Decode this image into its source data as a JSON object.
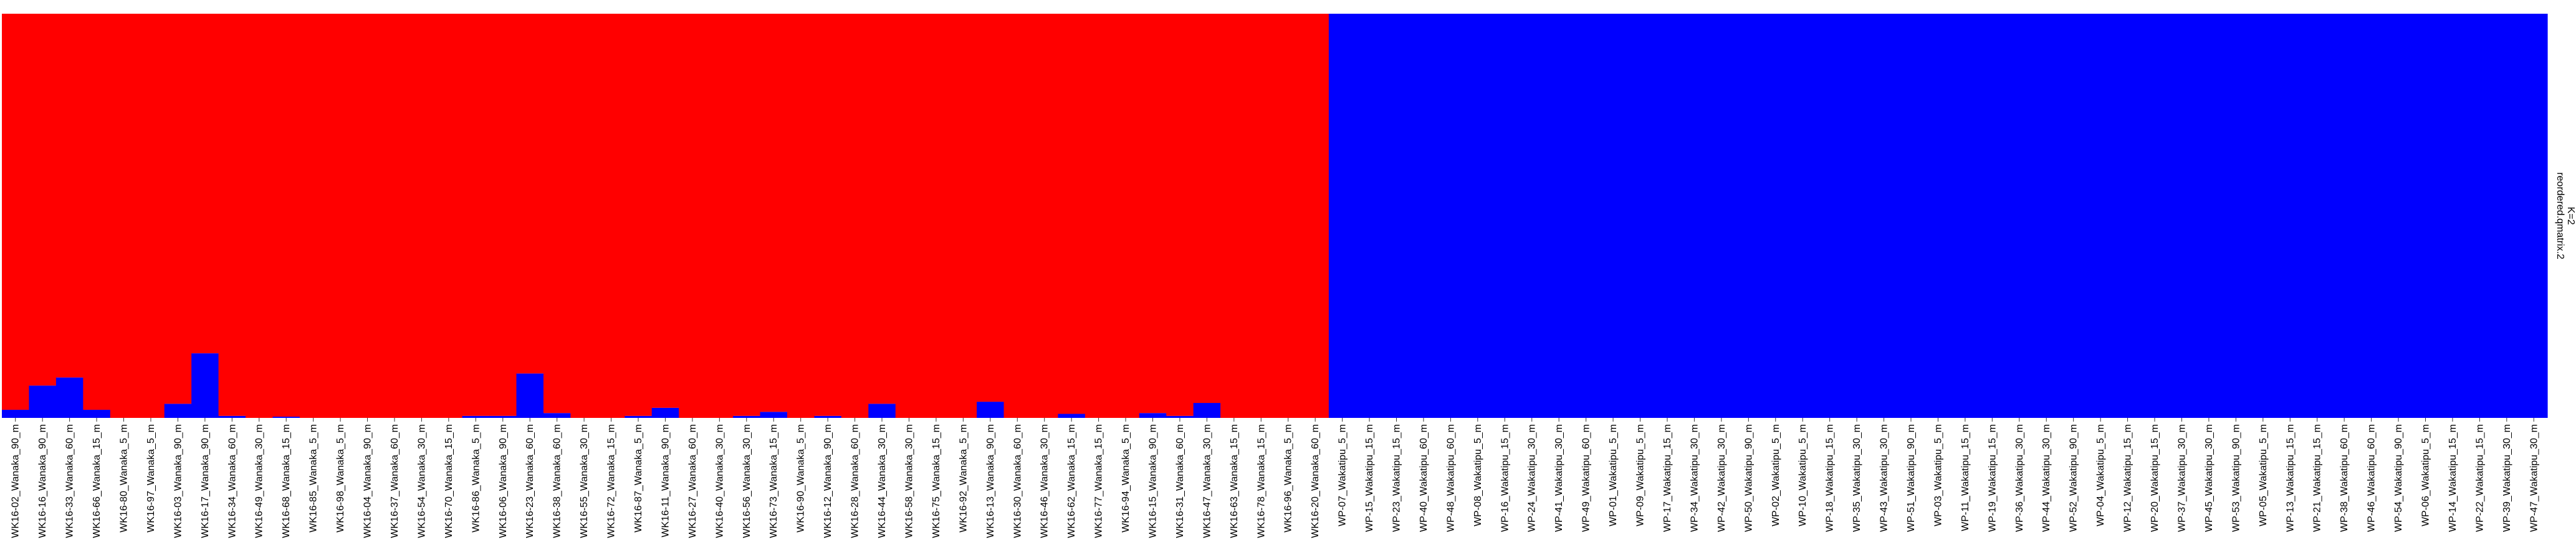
{
  "chart_data": {
    "type": "bar",
    "stacked": true,
    "normalized": true,
    "ylim": [
      0,
      1
    ],
    "grid": false,
    "facet_labels": [
      "reordered.qmatrix.2",
      "K=2"
    ],
    "colors": {
      "cluster1": "#ff0000",
      "cluster2": "#0000ff"
    },
    "categories": [
      "WK16-02_Wanaka_90_m",
      "WK16-16_Wanaka_90_m",
      "WK16-33_Wanaka_60_m",
      "WK16-66_Wanaka_15_m",
      "WK16-80_Wanaka_5_m",
      "WK16-97_Wanaka_5_m",
      "WK16-03_Wanaka_90_m",
      "WK16-17_Wanaka_90_m",
      "WK16-34_Wanaka_60_m",
      "WK16-49_Wanaka_30_m",
      "WK16-68_Wanaka_15_m",
      "WK16-85_Wanaka_5_m",
      "WK16-98_Wanaka_5_m",
      "WK16-04_Wanaka_90_m",
      "WK16-37_Wanaka_60_m",
      "WK16-54_Wanaka_30_m",
      "WK16-70_Wanaka_15_m",
      "WK16-86_Wanaka_5_m",
      "WK16-06_Wanaka_90_m",
      "WK16-23_Wanaka_60_m",
      "WK16-38_Wanaka_60_m",
      "WK16-55_Wanaka_30_m",
      "WK16-72_Wanaka_15_m",
      "WK16-87_Wanaka_5_m",
      "WK16-11_Wanaka_90_m",
      "WK16-27_Wanaka_60_m",
      "WK16-40_Wanaka_30_m",
      "WK16-56_Wanaka_30_m",
      "WK16-73_Wanaka_15_m",
      "WK16-90_Wanaka_5_m",
      "WK16-12_Wanaka_90_m",
      "WK16-28_Wanaka_60_m",
      "WK16-44_Wanaka_30_m",
      "WK16-58_Wanaka_30_m",
      "WK16-75_Wanaka_15_m",
      "WK16-92_Wanaka_5_m",
      "WK16-13_Wanaka_90_m",
      "WK16-30_Wanaka_60_m",
      "WK16-46_Wanaka_30_m",
      "WK16-62_Wanaka_15_m",
      "WK16-77_Wanaka_15_m",
      "WK16-94_Wanaka_5_m",
      "WK16-15_Wanaka_90_m",
      "WK16-31_Wanaka_60_m",
      "WK16-47_Wanaka_30_m",
      "WK16-63_Wanaka_15_m",
      "WK16-78_Wanaka_15_m",
      "WK16-96_Wanaka_5_m",
      "WK16-20_Wanaka_60_m",
      "WP-07_Wakatipu_5_m",
      "WP-15_Wakatipu_15_m",
      "WP-23_Wakatipu_15_m",
      "WP-40_Wakatipu_60_m",
      "WP-48_Wakatipu_60_m",
      "WP-08_Wakatipu_5_m",
      "WP-16_Wakatipu_15_m",
      "WP-24_Wakatipu_30_m",
      "WP-41_Wakatipu_30_m",
      "WP-49_Wakatipu_60_m",
      "WP-01_Wakatipu_5_m",
      "WP-09_Wakatipu_5_m",
      "WP-17_Wakatipu_15_m",
      "WP-34_Wakatipu_30_m",
      "WP-42_Wakatipu_30_m",
      "WP-50_Wakatipu_90_m",
      "WP-02_Wakatipu_5_m",
      "WP-10_Wakatipu_5_m",
      "WP-18_Wakatipu_15_m",
      "WP-35_Wakatipu_30_m",
      "WP-43_Wakatipu_30_m",
      "WP-51_Wakatipu_90_m",
      "WP-03_Wakatipu_5_m",
      "WP-11_Wakatipu_15_m",
      "WP-19_Wakatipu_15_m",
      "WP-36_Wakatipu_30_m",
      "WP-44_Wakatipu_30_m",
      "WP-52_Wakatipu_90_m",
      "WP-04_Wakatipu_5_m",
      "WP-12_Wakatipu_15_m",
      "WP-20_Wakatipu_15_m",
      "WP-37_Wakatipu_30_m",
      "WP-45_Wakatipu_30_m",
      "WP-53_Wakatipu_90_m",
      "WP-05_Wakatipu_5_m",
      "WP-13_Wakatipu_15_m",
      "WP-21_Wakatipu_15_m",
      "WP-38_Wakatipu_60_m",
      "WP-46_Wakatipu_60_m",
      "WP-54_Wakatipu_90_m",
      "WP-06_Wakatipu_5_m",
      "WP-14_Wakatipu_15_m",
      "WP-22_Wakatipu_15_m",
      "WP-39_Wakatipu_30_m",
      "WP-47_Wakatipu_30_m"
    ],
    "series": [
      {
        "color_key": "cluster2",
        "values": [
          0.02,
          0.08,
          0.1,
          0.02,
          0.0,
          0.0,
          0.035,
          0.16,
          0.005,
          0.0,
          0.003,
          0.0,
          0.0,
          0.0,
          0.0,
          0.0,
          0.0,
          0.005,
          0.005,
          0.11,
          0.012,
          0.0,
          0.0,
          0.005,
          0.025,
          0.0,
          0.0,
          0.005,
          0.015,
          0.0,
          0.005,
          0.0,
          0.035,
          0.0,
          0.0,
          0.0,
          0.04,
          0.0,
          0.0,
          0.01,
          0.0,
          0.0,
          0.012,
          0.005,
          0.037,
          0.0,
          0.0,
          0.0,
          0.0,
          1,
          1,
          1,
          1,
          1,
          1,
          1,
          1,
          1,
          1,
          1,
          1,
          1,
          1,
          1,
          1,
          1,
          1,
          1,
          1,
          1,
          1,
          1,
          1,
          1,
          1,
          1,
          1,
          1,
          1,
          1,
          1,
          1,
          1,
          1,
          1,
          1,
          1,
          1,
          1,
          1,
          1,
          1,
          1,
          1
        ]
      },
      {
        "color_key": "cluster1",
        "values": [
          0.98,
          0.92,
          0.9,
          0.98,
          1.0,
          1.0,
          0.965,
          0.84,
          0.995,
          1.0,
          0.997,
          1.0,
          1.0,
          1.0,
          1.0,
          1.0,
          1.0,
          0.995,
          0.995,
          0.89,
          0.988,
          1.0,
          1.0,
          0.995,
          0.975,
          1.0,
          1.0,
          0.995,
          0.985,
          1.0,
          0.995,
          1.0,
          0.965,
          1.0,
          1.0,
          1.0,
          0.96,
          1.0,
          1.0,
          0.99,
          1.0,
          1.0,
          0.988,
          0.995,
          0.963,
          1.0,
          1.0,
          1.0,
          1.0,
          0,
          0,
          0,
          0,
          0,
          0,
          0,
          0,
          0,
          0,
          0,
          0,
          0,
          0,
          0,
          0,
          0,
          0,
          0,
          0,
          0,
          0,
          0,
          0,
          0,
          0,
          0,
          0,
          0,
          0,
          0,
          0,
          0,
          0,
          0,
          0,
          0,
          0,
          0,
          0,
          0,
          0,
          0,
          0,
          0
        ]
      }
    ]
  }
}
